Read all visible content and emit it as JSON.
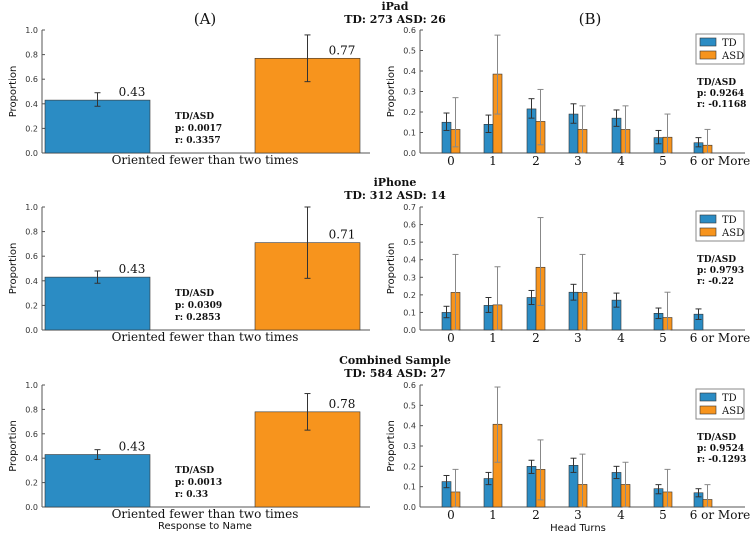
{
  "panel_labels": {
    "A": "(A)",
    "B": "(B)"
  },
  "colors": {
    "TD": "#2b8cc4",
    "ASD": "#f7941d"
  },
  "chart_data": [
    {
      "type": "bar",
      "title": "iPad",
      "subtitle": "TD: 273 ASD: 26",
      "panel": "A",
      "ylabel": "Proportion",
      "xlabel": "",
      "ylim": [
        0,
        1.0
      ],
      "yticks": [
        "0.0",
        "0.2",
        "0.4",
        "0.6",
        "0.8",
        "1.0"
      ],
      "categories": [
        "Oriented fewer than two times"
      ],
      "series": [
        {
          "name": "TD",
          "values": [
            0.43
          ],
          "err": [
            [
              0.38,
              0.49
            ]
          ],
          "labels": [
            "0.43"
          ]
        },
        {
          "name": "ASD",
          "values": [
            0.77
          ],
          "err": [
            [
              0.58,
              0.96
            ]
          ],
          "labels": [
            "0.77"
          ]
        }
      ],
      "stats": {
        "head": "TD/ASD",
        "p": "p: 0.0017",
        "r": "r: 0.3357"
      }
    },
    {
      "type": "bar",
      "title": "iPad",
      "subtitle": "TD: 273 ASD: 26",
      "panel": "B",
      "ylabel": "Proportion",
      "xlabel": "",
      "ylim": [
        0,
        0.6
      ],
      "yticks": [
        "0.0",
        "0.1",
        "0.2",
        "0.3",
        "0.4",
        "0.5",
        "0.6"
      ],
      "categories": [
        "0",
        "1",
        "2",
        "3",
        "4",
        "5",
        "6 or More"
      ],
      "series": [
        {
          "name": "TD",
          "values": [
            0.15,
            0.14,
            0.215,
            0.19,
            0.17,
            0.075,
            0.05
          ],
          "err": [
            [
              0.11,
              0.195
            ],
            [
              0.1,
              0.185
            ],
            [
              0.17,
              0.265
            ],
            [
              0.145,
              0.24
            ],
            [
              0.13,
              0.21
            ],
            [
              0.045,
              0.11
            ],
            [
              0.03,
              0.075
            ]
          ]
        },
        {
          "name": "ASD",
          "values": [
            0.115,
            0.385,
            0.154,
            0.115,
            0.115,
            0.077,
            0.038
          ],
          "err": [
            [
              0.03,
              0.27
            ],
            [
              0.19,
              0.575
            ],
            [
              0.04,
              0.31
            ],
            [
              0.0,
              0.23
            ],
            [
              0.0,
              0.23
            ],
            [
              0.0,
              0.19
            ],
            [
              0.0,
              0.115
            ]
          ]
        }
      ],
      "legend": "top-right",
      "stats": {
        "head": "TD/ASD",
        "p": "p: 0.9264",
        "r": "r: -0.1168"
      }
    },
    {
      "type": "bar",
      "title": "iPhone",
      "subtitle": "TD: 312 ASD: 14",
      "panel": "A",
      "ylabel": "Proportion",
      "xlabel": "",
      "ylim": [
        0,
        1.0
      ],
      "yticks": [
        "0.0",
        "0.2",
        "0.4",
        "0.6",
        "0.8",
        "1.0"
      ],
      "categories": [
        "Oriented fewer than two times"
      ],
      "series": [
        {
          "name": "TD",
          "values": [
            0.43
          ],
          "err": [
            [
              0.38,
              0.48
            ]
          ],
          "labels": [
            "0.43"
          ]
        },
        {
          "name": "ASD",
          "values": [
            0.71
          ],
          "err": [
            [
              0.42,
              1.0
            ]
          ],
          "labels": [
            "0.71"
          ]
        }
      ],
      "stats": {
        "head": "TD/ASD",
        "p": "p: 0.0309",
        "r": "r: 0.2853"
      }
    },
    {
      "type": "bar",
      "title": "iPhone",
      "subtitle": "TD: 312 ASD: 14",
      "panel": "B",
      "ylabel": "Proportion",
      "xlabel": "",
      "ylim": [
        0,
        0.7
      ],
      "yticks": [
        "0.0",
        "0.1",
        "0.2",
        "0.3",
        "0.4",
        "0.5",
        "0.6",
        "0.7"
      ],
      "categories": [
        "0",
        "1",
        "2",
        "3",
        "4",
        "5",
        "6 or More"
      ],
      "series": [
        {
          "name": "TD",
          "values": [
            0.1,
            0.14,
            0.185,
            0.215,
            0.17,
            0.095,
            0.09
          ],
          "err": [
            [
              0.07,
              0.135
            ],
            [
              0.1,
              0.185
            ],
            [
              0.145,
              0.225
            ],
            [
              0.17,
              0.26
            ],
            [
              0.13,
              0.21
            ],
            [
              0.065,
              0.125
            ],
            [
              0.06,
              0.12
            ]
          ]
        },
        {
          "name": "ASD",
          "values": [
            0.214,
            0.143,
            0.357,
            0.214,
            0,
            0.071,
            0
          ],
          "err": [
            [
              0.0,
              0.43
            ],
            [
              0.0,
              0.36
            ],
            [
              0.14,
              0.64
            ],
            [
              0.0,
              0.43
            ],
            null,
            [
              0.0,
              0.215
            ],
            null
          ]
        }
      ],
      "legend": "top-right",
      "stats": {
        "head": "TD/ASD",
        "p": "p: 0.9793",
        "r": "r: -0.22"
      }
    },
    {
      "type": "bar",
      "title": "Combined Sample",
      "subtitle": "TD: 584 ASD: 27",
      "panel": "A",
      "ylabel": "Proportion",
      "xlabel": "Response to Name",
      "ylim": [
        0,
        1.0
      ],
      "yticks": [
        "0.0",
        "0.2",
        "0.4",
        "0.6",
        "0.8",
        "1.0"
      ],
      "categories": [
        "Oriented fewer than two times"
      ],
      "series": [
        {
          "name": "TD",
          "values": [
            0.43
          ],
          "err": [
            [
              0.39,
              0.47
            ]
          ],
          "labels": [
            "0.43"
          ]
        },
        {
          "name": "ASD",
          "values": [
            0.78
          ],
          "err": [
            [
              0.63,
              0.93
            ]
          ],
          "labels": [
            "0.78"
          ]
        }
      ],
      "stats": {
        "head": "TD/ASD",
        "p": "p: 0.0013",
        "r": "r: 0.33"
      }
    },
    {
      "type": "bar",
      "title": "Combined Sample",
      "subtitle": "TD: 584 ASD: 27",
      "panel": "B",
      "ylabel": "Proportion",
      "xlabel": "Head Turns",
      "ylim": [
        0,
        0.6
      ],
      "yticks": [
        "0.0",
        "0.1",
        "0.2",
        "0.3",
        "0.4",
        "0.5",
        "0.6"
      ],
      "categories": [
        "0",
        "1",
        "2",
        "3",
        "4",
        "5",
        "6 or More"
      ],
      "series": [
        {
          "name": "TD",
          "values": [
            0.125,
            0.14,
            0.2,
            0.205,
            0.17,
            0.09,
            0.07
          ],
          "err": [
            [
              0.095,
              0.155
            ],
            [
              0.11,
              0.17
            ],
            [
              0.165,
              0.23
            ],
            [
              0.17,
              0.24
            ],
            [
              0.14,
              0.2
            ],
            [
              0.065,
              0.11
            ],
            [
              0.05,
              0.09
            ]
          ]
        },
        {
          "name": "ASD",
          "values": [
            0.074,
            0.407,
            0.185,
            0.111,
            0.111,
            0.074,
            0.037
          ],
          "err": [
            [
              0.0,
              0.185
            ],
            [
              0.22,
              0.59
            ],
            [
              0.035,
              0.33
            ],
            [
              0.0,
              0.26
            ],
            [
              0.0,
              0.22
            ],
            [
              0.0,
              0.185
            ],
            [
              0.0,
              0.11
            ]
          ]
        }
      ],
      "legend": "top-right",
      "stats": {
        "head": "TD/ASD",
        "p": "p: 0.9524",
        "r": "r: -0.1293"
      }
    }
  ]
}
